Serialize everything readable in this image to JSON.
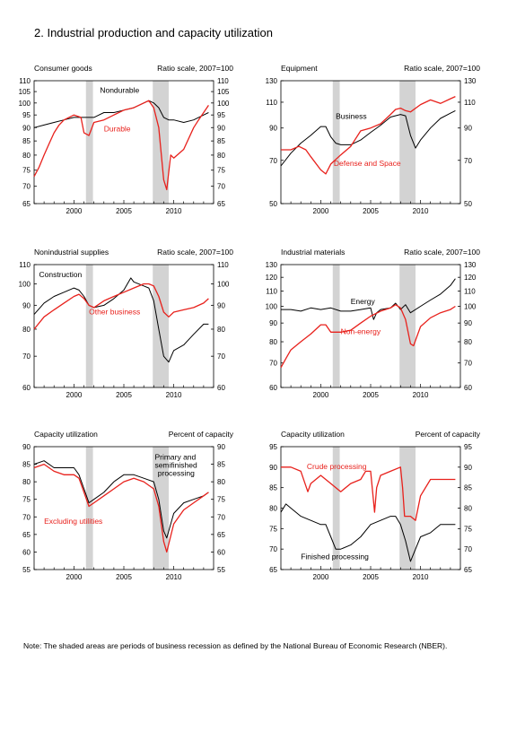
{
  "title": "2.  Industrial production and capacity utilization",
  "note": "Note: The shaded areas are periods of business recession as defined by the National Bureau of Economic Research (NBER).",
  "colors": {
    "red": "#e8211c",
    "black": "#000000",
    "recession": "#d3d3d3"
  },
  "chart_data": [
    {
      "type": "line",
      "title": "Consumer goods",
      "scale_label": "Ratio scale, 2007=100",
      "log_scale": true,
      "xlim": [
        1996,
        2014
      ],
      "x_ticks": [
        2000,
        2005,
        2010
      ],
      "ylim": [
        65,
        110
      ],
      "y_ticks": [
        65,
        70,
        75,
        80,
        85,
        90,
        95,
        100,
        105,
        110
      ],
      "recessions": [
        [
          2001.2,
          2001.9
        ],
        [
          2007.9,
          2009.5
        ]
      ],
      "series": [
        {
          "name": "Nondurable",
          "color": "#000000",
          "x": [
            1996.0,
            1997.0,
            1998.0,
            1999.0,
            2000.0,
            2001.0,
            2002.0,
            2003.0,
            2004.0,
            2005.0,
            2006.0,
            2007.0,
            2007.5,
            2008.0,
            2008.5,
            2009.0,
            2009.5,
            2010.0,
            2011.0,
            2012.0,
            2013.0,
            2013.5
          ],
          "y": [
            90,
            91,
            92,
            93,
            94,
            94,
            94,
            96,
            96,
            97,
            98,
            100,
            101,
            100,
            98,
            94,
            93,
            93,
            92,
            93,
            95,
            96
          ]
        },
        {
          "name": "Durable",
          "color": "#e8211c",
          "x": [
            1996.0,
            1996.5,
            1997.0,
            1997.5,
            1998.0,
            1998.5,
            1999.0,
            2000.0,
            2000.7,
            2001.0,
            2001.5,
            2002.0,
            2003.0,
            2004.0,
            2005.0,
            2006.0,
            2007.0,
            2007.5,
            2008.0,
            2008.5,
            2009.0,
            2009.3,
            2009.7,
            2010.0,
            2011.0,
            2012.0,
            2012.5,
            2013.0,
            2013.5
          ],
          "y": [
            73,
            76,
            80,
            84,
            88,
            91,
            93,
            95,
            94,
            88,
            87,
            92,
            93,
            95,
            97,
            98,
            100,
            101,
            98,
            90,
            72,
            69,
            80,
            79,
            82,
            90,
            93,
            96,
            99
          ]
        }
      ],
      "labels": [
        {
          "text": "Nondurable",
          "color": "#000000",
          "x": 2002.6,
          "y": 104.5
        },
        {
          "text": "Durable",
          "color": "#e8211c",
          "x": 2003.0,
          "y": 88.5
        }
      ]
    },
    {
      "type": "line",
      "title": "Equipment",
      "scale_label": "Ratio scale, 2007=100",
      "log_scale": true,
      "xlim": [
        1996,
        2014
      ],
      "x_ticks": [
        2000,
        2005,
        2010
      ],
      "ylim": [
        50,
        130
      ],
      "y_ticks": [
        50,
        70,
        90,
        110,
        130
      ],
      "recessions": [
        [
          2001.2,
          2001.9
        ],
        [
          2007.9,
          2009.5
        ]
      ],
      "series": [
        {
          "name": "Business",
          "color": "#000000",
          "x": [
            1996.0,
            1997.0,
            1998.0,
            1999.0,
            2000.0,
            2000.5,
            2001.0,
            2001.5,
            2002.0,
            2003.0,
            2004.0,
            2005.0,
            2006.0,
            2007.0,
            2008.0,
            2008.5,
            2009.0,
            2009.5,
            2010.0,
            2011.0,
            2012.0,
            2013.0,
            2013.5
          ],
          "y": [
            67,
            74,
            80,
            85,
            91,
            91,
            84,
            80,
            79,
            79,
            82,
            87,
            92,
            98,
            100,
            99,
            85,
            77,
            82,
            90,
            97,
            101,
            103
          ]
        },
        {
          "name": "Defense and Space",
          "color": "#e8211c",
          "x": [
            1996.0,
            1997.0,
            1997.8,
            1998.5,
            1999.0,
            2000.0,
            2000.5,
            2001.0,
            2002.0,
            2003.0,
            2004.0,
            2005.0,
            2006.0,
            2007.0,
            2007.5,
            2008.0,
            2008.5,
            2009.0,
            2010.0,
            2011.0,
            2012.0,
            2013.0,
            2013.5
          ],
          "y": [
            76,
            76,
            78,
            76,
            72,
            65,
            63,
            68,
            73,
            78,
            88,
            90,
            93,
            100,
            104,
            105,
            103,
            102,
            108,
            112,
            109,
            113,
            115
          ]
        }
      ],
      "labels": [
        {
          "text": "Business",
          "color": "#000000",
          "x": 2001.5,
          "y": 96.5
        },
        {
          "text": "Defense and Space",
          "color": "#e8211c",
          "x": 2001.3,
          "y": 67.0
        }
      ]
    },
    {
      "type": "line",
      "title": "Nonindustrial supplies",
      "scale_label": "Ratio scale, 2007=100",
      "log_scale": true,
      "xlim": [
        1996,
        2014
      ],
      "x_ticks": [
        2000,
        2005,
        2010
      ],
      "ylim": [
        60,
        110
      ],
      "y_ticks": [
        60,
        70,
        80,
        90,
        100,
        110
      ],
      "recessions": [
        [
          2001.2,
          2001.9
        ],
        [
          2007.9,
          2009.5
        ]
      ],
      "series": [
        {
          "name": "Construction",
          "color": "#000000",
          "x": [
            1996.0,
            1997.0,
            1998.0,
            1999.0,
            2000.0,
            2000.5,
            2001.0,
            2001.5,
            2002.0,
            2003.0,
            2004.0,
            2005.0,
            2005.7,
            2006.0,
            2007.0,
            2007.5,
            2008.0,
            2008.5,
            2009.0,
            2009.5,
            2010.0,
            2011.0,
            2012.0,
            2013.0,
            2013.5
          ],
          "y": [
            86,
            91,
            94,
            96,
            98,
            97,
            94,
            90,
            89,
            90,
            93,
            97,
            103,
            101,
            99,
            98,
            92,
            80,
            70,
            68,
            72,
            74,
            78,
            82,
            82
          ]
        },
        {
          "name": "Other business",
          "color": "#e8211c",
          "x": [
            1996.0,
            1997.0,
            1998.0,
            1999.0,
            2000.0,
            2000.5,
            2001.0,
            2001.5,
            2002.0,
            2003.0,
            2004.0,
            2005.0,
            2006.0,
            2007.0,
            2007.5,
            2008.0,
            2008.5,
            2009.0,
            2009.5,
            2010.0,
            2011.0,
            2012.0,
            2013.0,
            2013.5
          ],
          "y": [
            80,
            85,
            88,
            91,
            94,
            95,
            93,
            90,
            89,
            92,
            94,
            96,
            98,
            100,
            100,
            99,
            94,
            87,
            85,
            87,
            88,
            89,
            91,
            93
          ]
        }
      ],
      "labels": [
        {
          "text": "Construction",
          "color": "#000000",
          "x": 1996.5,
          "y": 103.5
        },
        {
          "text": "Other business",
          "color": "#e8211c",
          "x": 2001.5,
          "y": 86.0
        }
      ]
    },
    {
      "type": "line",
      "title": "Industrial materials",
      "scale_label": "Ratio scale, 2007=100",
      "log_scale": true,
      "xlim": [
        1996,
        2014
      ],
      "x_ticks": [
        2000,
        2005,
        2010
      ],
      "ylim": [
        60,
        130
      ],
      "y_ticks": [
        60,
        70,
        80,
        90,
        100,
        110,
        120,
        130
      ],
      "recessions": [
        [
          2001.2,
          2001.9
        ],
        [
          2007.9,
          2009.5
        ]
      ],
      "series": [
        {
          "name": "Energy",
          "color": "#000000",
          "x": [
            1996.0,
            1997.0,
            1998.0,
            1999.0,
            2000.0,
            2001.0,
            2002.0,
            2003.0,
            2004.0,
            2005.0,
            2005.3,
            2005.6,
            2006.0,
            2007.0,
            2007.5,
            2008.0,
            2008.5,
            2009.0,
            2010.0,
            2011.0,
            2012.0,
            2013.0,
            2013.5
          ],
          "y": [
            98,
            98,
            97,
            99,
            98,
            99,
            97,
            97,
            98,
            99,
            92,
            96,
            98,
            99,
            102,
            98,
            101,
            96,
            100,
            104,
            108,
            114,
            119
          ]
        },
        {
          "name": "Non-energy",
          "color": "#e8211c",
          "x": [
            1996.0,
            1996.5,
            1997.0,
            1998.0,
            1999.0,
            2000.0,
            2000.5,
            2001.0,
            2002.0,
            2003.0,
            2004.0,
            2005.0,
            2006.0,
            2007.0,
            2007.5,
            2008.0,
            2008.5,
            2009.0,
            2009.3,
            2010.0,
            2011.0,
            2012.0,
            2013.0,
            2013.5
          ],
          "y": [
            68,
            72,
            76,
            80,
            84,
            89,
            89,
            85,
            85,
            86,
            90,
            94,
            97,
            99,
            101,
            99,
            92,
            79,
            78,
            88,
            93,
            96,
            98,
            100
          ]
        }
      ],
      "labels": [
        {
          "text": "Energy",
          "color": "#000000",
          "x": 2003.0,
          "y": 101.5
        },
        {
          "text": "Non-energy",
          "color": "#e8211c",
          "x": 2002.0,
          "y": 84.0
        }
      ]
    },
    {
      "type": "line",
      "title": "Capacity utilization",
      "scale_label": "Percent of capacity",
      "log_scale": false,
      "xlim": [
        1996,
        2014
      ],
      "x_ticks": [
        2000,
        2005,
        2010
      ],
      "ylim": [
        55,
        90
      ],
      "y_ticks": [
        55,
        60,
        65,
        70,
        75,
        80,
        85,
        90
      ],
      "recessions": [
        [
          2001.2,
          2001.9
        ],
        [
          2007.9,
          2009.5
        ]
      ],
      "series": [
        {
          "name": "Primary and semifinished processing",
          "color": "#000000",
          "x": [
            1996.0,
            1997.0,
            1998.0,
            1999.0,
            2000.0,
            2000.5,
            2001.0,
            2001.5,
            2002.0,
            2003.0,
            2004.0,
            2005.0,
            2006.0,
            2007.0,
            2008.0,
            2008.5,
            2009.0,
            2009.3,
            2010.0,
            2011.0,
            2012.0,
            2013.0,
            2013.5
          ],
          "y": [
            85,
            86,
            84,
            84,
            84,
            82,
            78,
            74,
            75,
            77,
            80,
            82,
            82,
            81,
            80,
            75,
            66,
            64,
            71,
            74,
            75,
            76,
            77
          ]
        },
        {
          "name": "Excluding utilities",
          "color": "#e8211c",
          "x": [
            1996.0,
            1997.0,
            1998.0,
            1999.0,
            2000.0,
            2000.5,
            2001.0,
            2001.5,
            2002.0,
            2003.0,
            2004.0,
            2005.0,
            2006.0,
            2007.0,
            2008.0,
            2008.5,
            2009.0,
            2009.3,
            2010.0,
            2011.0,
            2012.0,
            2013.0,
            2013.5
          ],
          "y": [
            84,
            85,
            83,
            82,
            82,
            81,
            77,
            73,
            74,
            76,
            78,
            80,
            81,
            80,
            78,
            73,
            63,
            60,
            68,
            72,
            74,
            76,
            77
          ]
        }
      ],
      "labels": [
        {
          "text": "Primary and",
          "color": "#000000",
          "x": 2008.1,
          "y": 86.3
        },
        {
          "text": "semifinished",
          "color": "#000000",
          "x": 2008.1,
          "y": 84.0
        },
        {
          "text": "processing",
          "color": "#000000",
          "x": 2008.4,
          "y": 81.7
        },
        {
          "text": "Excluding utilities",
          "color": "#e8211c",
          "x": 1997.0,
          "y": 68.0
        }
      ]
    },
    {
      "type": "line",
      "title": "Capacity utilization",
      "scale_label": "Percent of capacity",
      "log_scale": false,
      "xlim": [
        1996,
        2014
      ],
      "x_ticks": [
        2000,
        2005,
        2010
      ],
      "ylim": [
        65,
        95
      ],
      "y_ticks": [
        65,
        70,
        75,
        80,
        85,
        90,
        95
      ],
      "recessions": [
        [
          2001.2,
          2001.9
        ],
        [
          2007.9,
          2009.5
        ]
      ],
      "series": [
        {
          "name": "Crude processing",
          "color": "#e8211c",
          "x": [
            1996.0,
            1997.0,
            1998.0,
            1998.7,
            1999.0,
            2000.0,
            2001.0,
            2002.0,
            2003.0,
            2004.0,
            2004.5,
            2005.0,
            2005.4,
            2005.6,
            2006.0,
            2007.0,
            2008.0,
            2008.2,
            2008.4,
            2009.0,
            2009.5,
            2010.0,
            2011.0,
            2012.0,
            2013.0,
            2013.5
          ],
          "y": [
            90,
            90,
            89,
            84,
            86,
            88,
            86,
            84,
            86,
            87,
            89,
            89,
            79,
            85,
            88,
            89,
            90,
            85,
            78,
            78,
            77,
            83,
            87,
            87,
            87,
            87
          ]
        },
        {
          "name": "Finished processing",
          "color": "#000000",
          "x": [
            1996.0,
            1996.5,
            1997.0,
            1998.0,
            1999.0,
            2000.0,
            2000.5,
            2001.0,
            2001.5,
            2002.0,
            2003.0,
            2004.0,
            2005.0,
            2006.0,
            2007.0,
            2007.5,
            2008.0,
            2008.5,
            2009.0,
            2009.5,
            2010.0,
            2011.0,
            2012.0,
            2013.0,
            2013.5
          ],
          "y": [
            79,
            81,
            80,
            78,
            77,
            76,
            76,
            73,
            70,
            70,
            71,
            73,
            76,
            77,
            78,
            78,
            76,
            72,
            67,
            70,
            73,
            74,
            76,
            76,
            76
          ]
        }
      ],
      "labels": [
        {
          "text": "Crude processing",
          "color": "#e8211c",
          "x": 1998.6,
          "y": 89.5
        },
        {
          "text": "Finished processing",
          "color": "#000000",
          "x": 1998.0,
          "y": 67.5
        }
      ]
    }
  ]
}
